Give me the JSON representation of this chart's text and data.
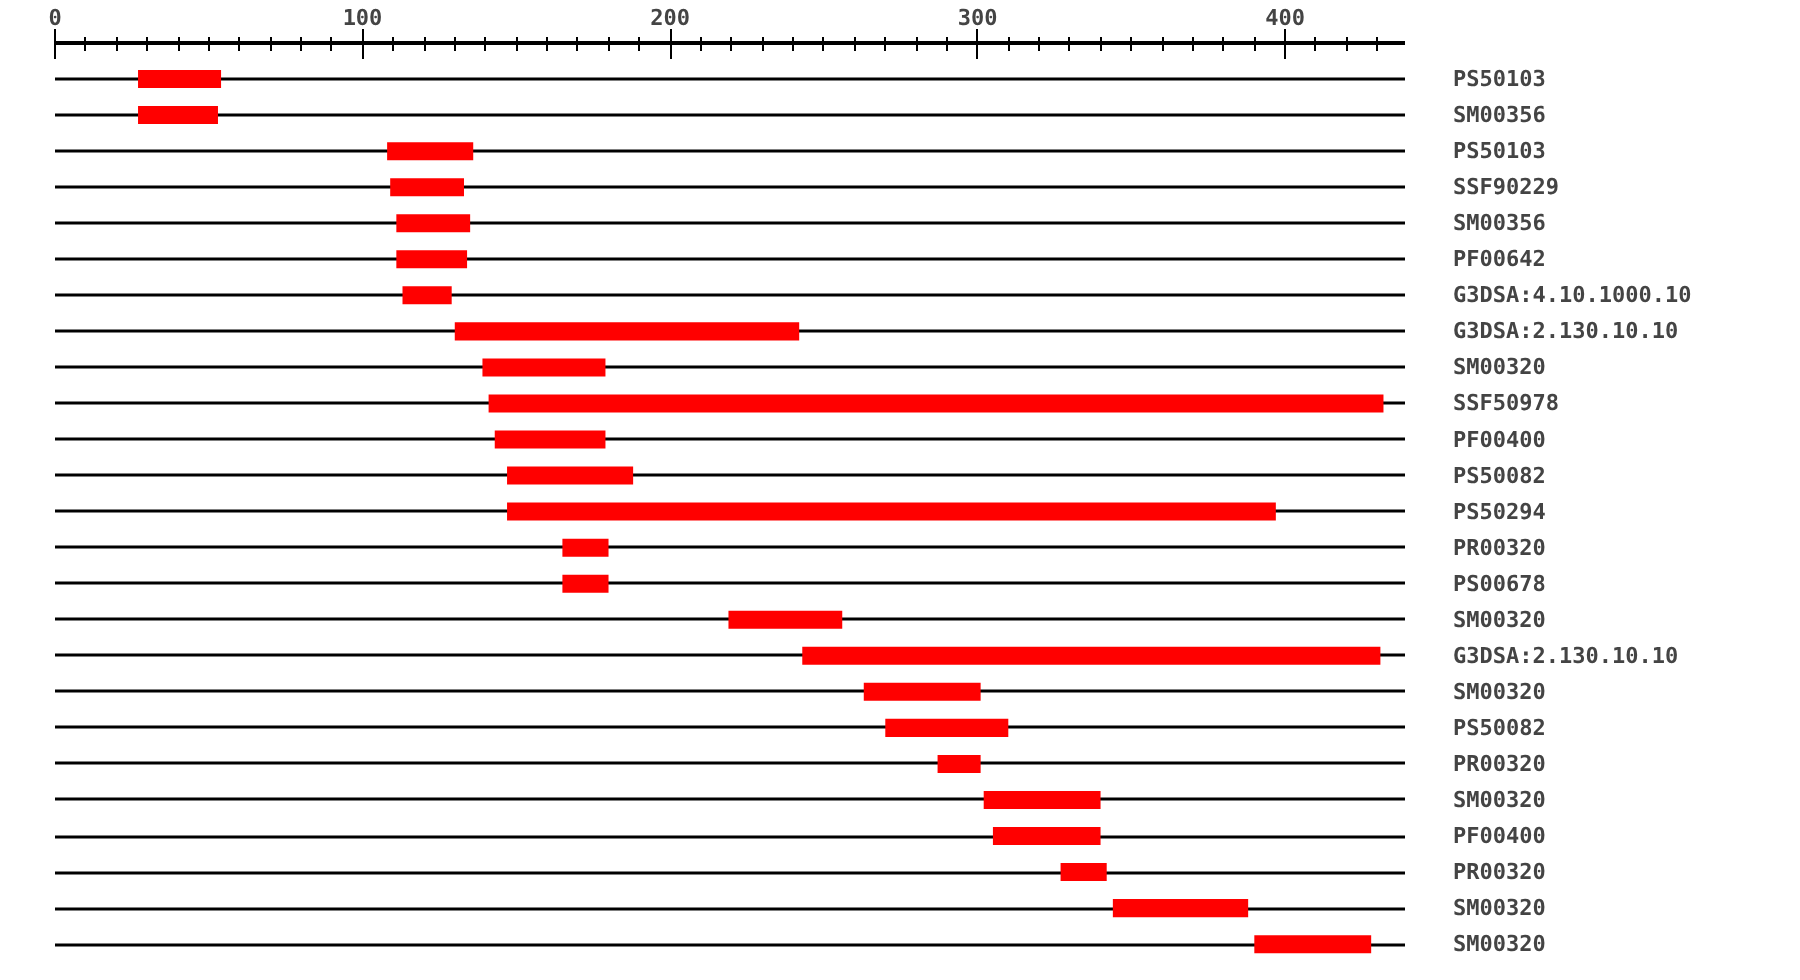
{
  "chart_data": {
    "type": "bar",
    "orientation": "horizontal",
    "color": "#ff0000",
    "grid": "y",
    "categories": [
      "PS50103",
      "SM00356",
      "PS50103",
      "SSF90229",
      "SM00356",
      "PF00642",
      "G3DSA:4.10.1000.10",
      "G3DSA:2.130.10.10",
      "SM00320",
      "SSF50978",
      "PF00400",
      "PS50082",
      "PS50294",
      "PR00320",
      "PS00678",
      "SM00320",
      "G3DSA:2.130.10.10",
      "SM00320",
      "PS50082",
      "PR00320",
      "SM00320",
      "PF00400",
      "PR00320",
      "SM00320",
      "SM00320"
    ],
    "base": [
      27,
      27,
      108,
      109,
      111,
      111,
      113,
      130,
      139,
      141,
      143,
      147,
      147,
      165,
      165,
      219,
      243,
      263,
      270,
      287,
      302,
      305,
      327,
      344,
      390
    ],
    "values": [
      27,
      26,
      28,
      24,
      24,
      23,
      16,
      112,
      40,
      291,
      36,
      41,
      250,
      15,
      15,
      37,
      188,
      38,
      40,
      14,
      38,
      35,
      15,
      44,
      38
    ],
    "xlim": [
      0,
      439
    ],
    "xticks": [
      0,
      {
        "value": 10,
        "label": null
      },
      {
        "value": 20,
        "label": null
      },
      {
        "value": 30,
        "label": null
      },
      {
        "value": 40,
        "label": null
      },
      {
        "value": 50,
        "label": null
      },
      {
        "value": 60,
        "label": null
      },
      {
        "value": 70,
        "label": null
      },
      {
        "value": 80,
        "label": null
      },
      {
        "value": 90,
        "label": null
      },
      100,
      {
        "value": 110,
        "label": null
      },
      {
        "value": 120,
        "label": null
      },
      {
        "value": 130,
        "label": null
      },
      {
        "value": 140,
        "label": null
      },
      {
        "value": 150,
        "label": null
      },
      {
        "value": 160,
        "label": null
      },
      {
        "value": 170,
        "label": null
      },
      {
        "value": 180,
        "label": null
      },
      {
        "value": 190,
        "label": null
      },
      200,
      {
        "value": 210,
        "label": null
      },
      {
        "value": 220,
        "label": null
      },
      {
        "value": 230,
        "label": null
      },
      {
        "value": 240,
        "label": null
      },
      {
        "value": 250,
        "label": null
      },
      {
        "value": 260,
        "label": null
      },
      {
        "value": 270,
        "label": null
      },
      {
        "value": 280,
        "label": null
      },
      {
        "value": 290,
        "label": null
      },
      300,
      {
        "value": 310,
        "label": null
      },
      {
        "value": 320,
        "label": null
      },
      {
        "value": 330,
        "label": null
      },
      {
        "value": 340,
        "label": null
      },
      {
        "value": 350,
        "label": null
      },
      {
        "value": 360,
        "label": null
      },
      {
        "value": 370,
        "label": null
      },
      {
        "value": 380,
        "label": null
      },
      {
        "value": 390,
        "label": null
      },
      400,
      {
        "value": 410,
        "label": null
      },
      {
        "value": 420,
        "label": null
      },
      {
        "value": 430,
        "label": null
      }
    ]
  }
}
